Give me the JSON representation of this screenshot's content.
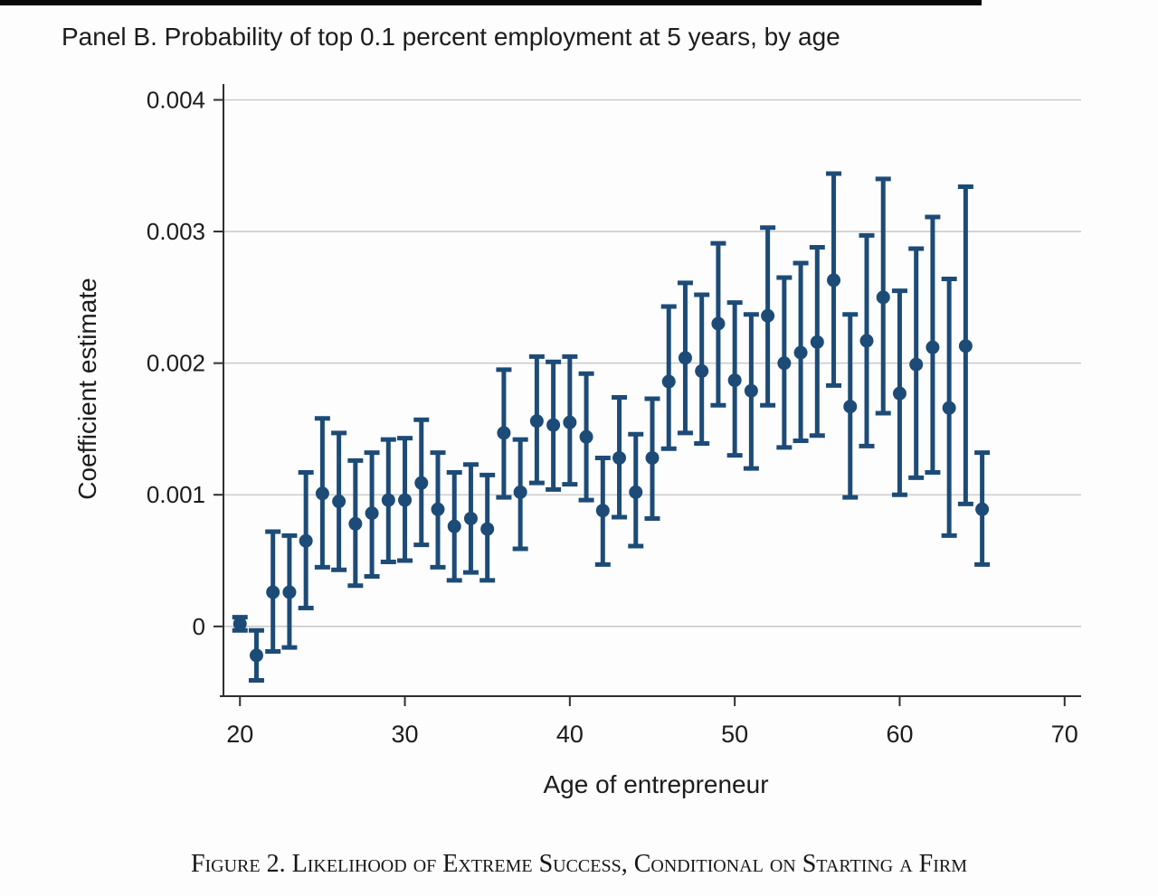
{
  "page": {
    "panel_title": "Panel B. Probability of top 0.1 percent employment at 5 years, by age",
    "caption": "Figure 2. Likelihood of Extreme Success, Conditional on Starting a Firm"
  },
  "chart_data": {
    "type": "scatter",
    "subtype": "coefficient-plot-with-error-bars",
    "title": "Panel B. Probability of top 0.1 percent employment at 5 years, by age",
    "xlabel": "Age of entrepreneur",
    "ylabel": "Coefficient estimate",
    "xlim": [
      19,
      71
    ],
    "ylim": [
      -0.00053,
      0.00412
    ],
    "xticks": [
      20,
      30,
      40,
      50,
      60,
      70
    ],
    "yticks": [
      0,
      0.001,
      0.002,
      0.003,
      0.004
    ],
    "ytick_labels": [
      "0",
      "0.001",
      "0.002",
      "0.003",
      "0.004"
    ],
    "grid": true,
    "legend": "none",
    "marker_color": "#1d4b77",
    "axis_color": "#2f2f2f",
    "grid_color": "#c3c3c3",
    "series": [
      {
        "name": "coefficient-estimate-with-confidence-interval",
        "points": [
          {
            "age": 20,
            "est": 2e-05,
            "lo": -3e-05,
            "hi": 7e-05
          },
          {
            "age": 21,
            "est": -0.00022,
            "lo": -0.00041,
            "hi": -3e-05
          },
          {
            "age": 22,
            "est": 0.00026,
            "lo": -0.00019,
            "hi": 0.00072
          },
          {
            "age": 23,
            "est": 0.00026,
            "lo": -0.00016,
            "hi": 0.00069
          },
          {
            "age": 24,
            "est": 0.00065,
            "lo": 0.00014,
            "hi": 0.00117
          },
          {
            "age": 25,
            "est": 0.00101,
            "lo": 0.00045,
            "hi": 0.00158
          },
          {
            "age": 26,
            "est": 0.00095,
            "lo": 0.00043,
            "hi": 0.00147
          },
          {
            "age": 27,
            "est": 0.00078,
            "lo": 0.00031,
            "hi": 0.00126
          },
          {
            "age": 28,
            "est": 0.00086,
            "lo": 0.00038,
            "hi": 0.00132
          },
          {
            "age": 29,
            "est": 0.00096,
            "lo": 0.00049,
            "hi": 0.00142
          },
          {
            "age": 30,
            "est": 0.00096,
            "lo": 0.0005,
            "hi": 0.00143
          },
          {
            "age": 31,
            "est": 0.00109,
            "lo": 0.00062,
            "hi": 0.00157
          },
          {
            "age": 32,
            "est": 0.00089,
            "lo": 0.00045,
            "hi": 0.00132
          },
          {
            "age": 33,
            "est": 0.00076,
            "lo": 0.00035,
            "hi": 0.00117
          },
          {
            "age": 34,
            "est": 0.00082,
            "lo": 0.00041,
            "hi": 0.00123
          },
          {
            "age": 35,
            "est": 0.00074,
            "lo": 0.00035,
            "hi": 0.00115
          },
          {
            "age": 36,
            "est": 0.00147,
            "lo": 0.00098,
            "hi": 0.00195
          },
          {
            "age": 37,
            "est": 0.00102,
            "lo": 0.00059,
            "hi": 0.00142
          },
          {
            "age": 38,
            "est": 0.00156,
            "lo": 0.00109,
            "hi": 0.00205
          },
          {
            "age": 39,
            "est": 0.00153,
            "lo": 0.00104,
            "hi": 0.00201
          },
          {
            "age": 40,
            "est": 0.00155,
            "lo": 0.00108,
            "hi": 0.00205
          },
          {
            "age": 41,
            "est": 0.00144,
            "lo": 0.00096,
            "hi": 0.00192
          },
          {
            "age": 42,
            "est": 0.00088,
            "lo": 0.00047,
            "hi": 0.00128
          },
          {
            "age": 43,
            "est": 0.00128,
            "lo": 0.00083,
            "hi": 0.00174
          },
          {
            "age": 44,
            "est": 0.00102,
            "lo": 0.00061,
            "hi": 0.00146
          },
          {
            "age": 45,
            "est": 0.00128,
            "lo": 0.00082,
            "hi": 0.00173
          },
          {
            "age": 46,
            "est": 0.00186,
            "lo": 0.00135,
            "hi": 0.00243
          },
          {
            "age": 47,
            "est": 0.00204,
            "lo": 0.00147,
            "hi": 0.00261
          },
          {
            "age": 48,
            "est": 0.00194,
            "lo": 0.00139,
            "hi": 0.00252
          },
          {
            "age": 49,
            "est": 0.0023,
            "lo": 0.00168,
            "hi": 0.00291
          },
          {
            "age": 50,
            "est": 0.00187,
            "lo": 0.0013,
            "hi": 0.00246
          },
          {
            "age": 51,
            "est": 0.00179,
            "lo": 0.0012,
            "hi": 0.00237
          },
          {
            "age": 52,
            "est": 0.00236,
            "lo": 0.00168,
            "hi": 0.00303
          },
          {
            "age": 53,
            "est": 0.002,
            "lo": 0.00136,
            "hi": 0.00265
          },
          {
            "age": 54,
            "est": 0.00208,
            "lo": 0.00141,
            "hi": 0.00276
          },
          {
            "age": 55,
            "est": 0.00216,
            "lo": 0.00145,
            "hi": 0.00288
          },
          {
            "age": 56,
            "est": 0.00263,
            "lo": 0.00183,
            "hi": 0.00344
          },
          {
            "age": 57,
            "est": 0.00167,
            "lo": 0.00098,
            "hi": 0.00237
          },
          {
            "age": 58,
            "est": 0.00217,
            "lo": 0.00137,
            "hi": 0.00297
          },
          {
            "age": 59,
            "est": 0.0025,
            "lo": 0.00162,
            "hi": 0.0034
          },
          {
            "age": 60,
            "est": 0.00177,
            "lo": 0.001,
            "hi": 0.00255
          },
          {
            "age": 61,
            "est": 0.00199,
            "lo": 0.00113,
            "hi": 0.00287
          },
          {
            "age": 62,
            "est": 0.00212,
            "lo": 0.00117,
            "hi": 0.00311
          },
          {
            "age": 63,
            "est": 0.00166,
            "lo": 0.00069,
            "hi": 0.00264
          },
          {
            "age": 64,
            "est": 0.00213,
            "lo": 0.00093,
            "hi": 0.00334
          },
          {
            "age": 65,
            "est": 0.00089,
            "lo": 0.00047,
            "hi": 0.00132
          }
        ]
      }
    ]
  }
}
